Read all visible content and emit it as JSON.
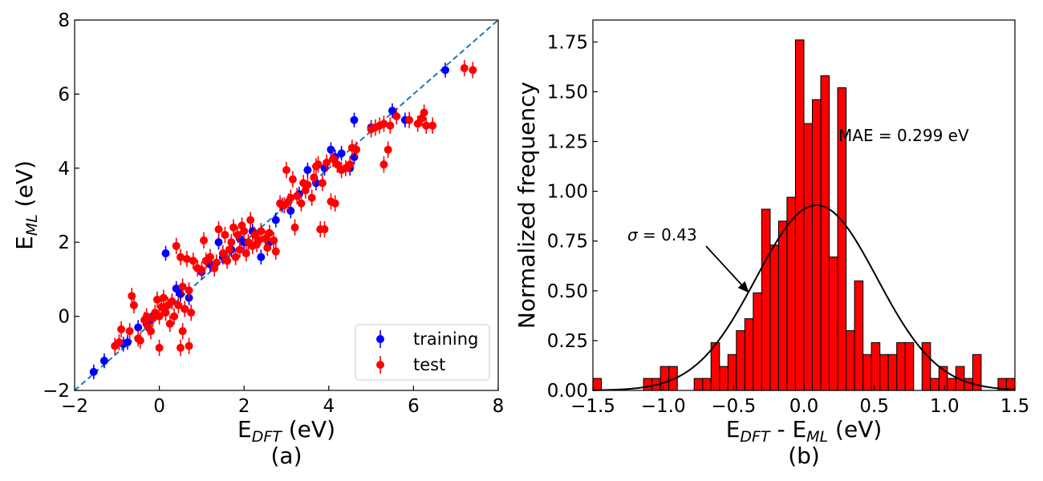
{
  "chart_data": [
    {
      "type": "scatter",
      "subplot_label": "(a)",
      "xlabel_main": "E",
      "xlabel_sub": "DFT",
      "xlabel_unit": " (eV)",
      "ylabel_main": "E",
      "ylabel_sub": "ML",
      "ylabel_unit": " (eV)",
      "xlim": [
        -2,
        8
      ],
      "ylim": [
        -2,
        8
      ],
      "xticks": [
        -2,
        0,
        2,
        4,
        6,
        8
      ],
      "yticks": [
        -2,
        0,
        2,
        4,
        6,
        8
      ],
      "xtick_labels": [
        "−2",
        "0",
        "2",
        "4",
        "6",
        "8"
      ],
      "ytick_labels": [
        "−2",
        "0",
        "2",
        "4",
        "6",
        "8"
      ],
      "diagonal": {
        "style": "dashed",
        "color": "#1f77b4",
        "from": [
          -2,
          -2
        ],
        "to": [
          8,
          8
        ]
      },
      "legend": {
        "placement": "lower-right",
        "entries": [
          "training",
          "test"
        ]
      },
      "series": [
        {
          "name": "training",
          "color": "#0000ff",
          "error": 0.2,
          "points": [
            [
              -1.55,
              -1.5
            ],
            [
              -1.3,
              -1.2
            ],
            [
              -0.85,
              -0.75
            ],
            [
              -0.75,
              -0.7
            ],
            [
              -0.5,
              -0.3
            ],
            [
              -0.3,
              -0.2
            ],
            [
              -0.2,
              -0.1
            ],
            [
              0.15,
              1.7
            ],
            [
              0.3,
              0.4
            ],
            [
              0.4,
              0.75
            ],
            [
              0.5,
              0.6
            ],
            [
              0.6,
              0.2
            ],
            [
              0.7,
              0.5
            ],
            [
              1.0,
              1.2
            ],
            [
              1.2,
              1.4
            ],
            [
              1.4,
              2.0
            ],
            [
              1.5,
              1.6
            ],
            [
              1.7,
              1.8
            ],
            [
              1.9,
              2.1
            ],
            [
              2.0,
              2.0
            ],
            [
              2.2,
              2.3
            ],
            [
              2.4,
              1.6
            ],
            [
              2.6,
              2.0
            ],
            [
              2.75,
              2.6
            ],
            [
              2.9,
              3.0
            ],
            [
              3.1,
              2.85
            ],
            [
              3.3,
              3.3
            ],
            [
              3.5,
              3.95
            ],
            [
              3.7,
              3.6
            ],
            [
              3.9,
              4.0
            ],
            [
              4.05,
              4.5
            ],
            [
              4.15,
              4.3
            ],
            [
              4.3,
              4.4
            ],
            [
              4.5,
              4.0
            ],
            [
              4.6,
              5.3
            ],
            [
              4.6,
              4.3
            ],
            [
              5.0,
              5.1
            ],
            [
              5.5,
              5.55
            ],
            [
              5.8,
              5.3
            ],
            [
              6.75,
              6.65
            ]
          ]
        },
        {
          "name": "test",
          "color": "#ff0000",
          "error": 0.22,
          "points": [
            [
              -1.05,
              -0.8
            ],
            [
              -0.95,
              -0.7
            ],
            [
              -0.9,
              -0.35
            ],
            [
              -0.7,
              -0.4
            ],
            [
              -0.6,
              0.3
            ],
            [
              -0.65,
              0.55
            ],
            [
              -0.5,
              -0.6
            ],
            [
              -0.45,
              -0.65
            ],
            [
              -0.35,
              -0.1
            ],
            [
              -0.3,
              0.0
            ],
            [
              -0.25,
              -0.3
            ],
            [
              -0.2,
              -0.4
            ],
            [
              -0.15,
              -0.05
            ],
            [
              -0.1,
              0.1
            ],
            [
              -0.05,
              0.45
            ],
            [
              0.0,
              0.0
            ],
            [
              0.0,
              -0.85
            ],
            [
              0.05,
              0.25
            ],
            [
              0.1,
              0.5
            ],
            [
              0.15,
              0.1
            ],
            [
              0.2,
              0.3
            ],
            [
              0.25,
              -0.2
            ],
            [
              0.3,
              0.4
            ],
            [
              0.35,
              0.0
            ],
            [
              0.4,
              1.9
            ],
            [
              0.45,
              0.3
            ],
            [
              0.5,
              1.6
            ],
            [
              0.5,
              -0.85
            ],
            [
              0.55,
              0.8
            ],
            [
              0.55,
              -0.4
            ],
            [
              0.6,
              0.2
            ],
            [
              0.65,
              1.55
            ],
            [
              0.7,
              0.7
            ],
            [
              0.7,
              -0.8
            ],
            [
              0.75,
              0.1
            ],
            [
              0.8,
              1.5
            ],
            [
              0.9,
              1.3
            ],
            [
              1.0,
              1.25
            ],
            [
              1.05,
              2.05
            ],
            [
              1.1,
              1.5
            ],
            [
              1.2,
              1.6
            ],
            [
              1.3,
              1.3
            ],
            [
              1.35,
              1.45
            ],
            [
              1.4,
              2.35
            ],
            [
              1.5,
              1.7
            ],
            [
              1.55,
              2.2
            ],
            [
              1.6,
              1.5
            ],
            [
              1.65,
              1.8
            ],
            [
              1.7,
              2.0
            ],
            [
              1.75,
              2.4
            ],
            [
              1.8,
              1.6
            ],
            [
              1.85,
              2.2
            ],
            [
              1.9,
              1.8
            ],
            [
              1.95,
              2.45
            ],
            [
              2.0,
              2.3
            ],
            [
              2.05,
              1.7
            ],
            [
              2.1,
              2.0
            ],
            [
              2.15,
              2.6
            ],
            [
              2.2,
              1.9
            ],
            [
              2.25,
              2.2
            ],
            [
              2.3,
              1.95
            ],
            [
              2.35,
              2.05
            ],
            [
              2.4,
              2.3
            ],
            [
              2.5,
              2.1
            ],
            [
              2.55,
              1.85
            ],
            [
              2.6,
              2.25
            ],
            [
              2.7,
              2.05
            ],
            [
              2.75,
              1.75
            ],
            [
              2.85,
              3.05
            ],
            [
              2.95,
              3.0
            ],
            [
              3.0,
              3.95
            ],
            [
              3.05,
              3.1
            ],
            [
              3.1,
              3.2
            ],
            [
              3.15,
              3.7
            ],
            [
              3.2,
              2.4
            ],
            [
              3.25,
              3.25
            ],
            [
              3.35,
              3.05
            ],
            [
              3.4,
              3.6
            ],
            [
              3.45,
              3.4
            ],
            [
              3.5,
              3.55
            ],
            [
              3.6,
              3.2
            ],
            [
              3.65,
              3.75
            ],
            [
              3.7,
              4.05
            ],
            [
              3.75,
              4.1
            ],
            [
              3.8,
              2.35
            ],
            [
              3.85,
              3.6
            ],
            [
              3.9,
              2.35
            ],
            [
              3.95,
              4.15
            ],
            [
              4.05,
              3.1
            ],
            [
              4.1,
              4.25
            ],
            [
              4.15,
              3.05
            ],
            [
              4.2,
              4.1
            ],
            [
              4.3,
              3.95
            ],
            [
              4.4,
              4.0
            ],
            [
              4.5,
              4.1
            ],
            [
              4.55,
              4.55
            ],
            [
              4.65,
              4.5
            ],
            [
              5.0,
              5.05
            ],
            [
              5.1,
              5.1
            ],
            [
              5.2,
              5.15
            ],
            [
              5.3,
              5.2
            ],
            [
              5.3,
              4.1
            ],
            [
              5.4,
              4.5
            ],
            [
              5.45,
              5.15
            ],
            [
              5.6,
              5.4
            ],
            [
              5.9,
              5.3
            ],
            [
              6.1,
              5.2
            ],
            [
              6.2,
              5.35
            ],
            [
              6.25,
              5.5
            ],
            [
              6.3,
              5.15
            ],
            [
              6.45,
              5.15
            ],
            [
              7.2,
              6.7
            ],
            [
              7.4,
              6.65
            ]
          ]
        }
      ]
    },
    {
      "type": "bar",
      "subplot_label": "(b)",
      "xlabel_a": "E",
      "xlabel_a_sub": "DFT",
      "xlabel_mid": " - E",
      "xlabel_b_sub": "ML",
      "xlabel_unit": " (eV)",
      "ylabel": "Normalized frequency",
      "xlim": [
        -1.5,
        1.5
      ],
      "ylim": [
        0,
        1.86
      ],
      "xticks": [
        -1.5,
        -1.0,
        -0.5,
        0.0,
        0.5,
        1.0,
        1.5
      ],
      "xtick_labels": [
        "−1.5",
        "−1.0",
        "−0.5",
        "0.0",
        "0.5",
        "1.0",
        "1.5"
      ],
      "yticks": [
        0,
        0.25,
        0.5,
        0.75,
        1.0,
        1.25,
        1.5,
        1.75
      ],
      "ytick_labels": [
        "0.00",
        "0.25",
        "0.50",
        "0.75",
        "1.00",
        "1.25",
        "1.50",
        "1.75"
      ],
      "bar_color": "#ff0000",
      "bin_edges": [
        -1.5,
        -1.44,
        -1.38,
        -1.32,
        -1.26,
        -1.2,
        -1.14,
        -1.08,
        -1.02,
        -0.96,
        -0.9,
        -0.84,
        -0.78,
        -0.72,
        -0.66,
        -0.6,
        -0.54,
        -0.48,
        -0.42,
        -0.36,
        -0.3,
        -0.24,
        -0.18,
        -0.12,
        -0.06,
        0.0,
        0.06,
        0.12,
        0.18,
        0.24,
        0.3,
        0.36,
        0.42,
        0.48,
        0.54,
        0.6,
        0.66,
        0.72,
        0.78,
        0.84,
        0.9,
        0.96,
        1.02,
        1.08,
        1.14,
        1.2,
        1.26,
        1.32,
        1.38,
        1.44,
        1.5
      ],
      "values": [
        0.06,
        0,
        0,
        0,
        0,
        0,
        0.06,
        0.06,
        0.12,
        0.12,
        0,
        0,
        0.06,
        0.06,
        0.24,
        0.12,
        0.18,
        0.3,
        0.36,
        0.49,
        0.91,
        0.73,
        0.85,
        0.97,
        1.76,
        1.34,
        1.46,
        1.58,
        0.67,
        1.52,
        0.3,
        0.55,
        0.18,
        0.24,
        0.18,
        0.18,
        0.24,
        0.24,
        0,
        0.24,
        0.06,
        0.12,
        0.06,
        0.12,
        0.06,
        0.18,
        0,
        0,
        0.06,
        0.06
      ],
      "gaussian": {
        "mean": 0.09,
        "sigma": 0.43,
        "peak": 0.93,
        "color": "#000000"
      },
      "annotations": {
        "mae": "MAE = 0.299 eV",
        "sigma_symbol": "σ",
        "sigma_text": " = 0.43",
        "arrow_target": [
          -0.39,
          0.49
        ]
      }
    }
  ]
}
